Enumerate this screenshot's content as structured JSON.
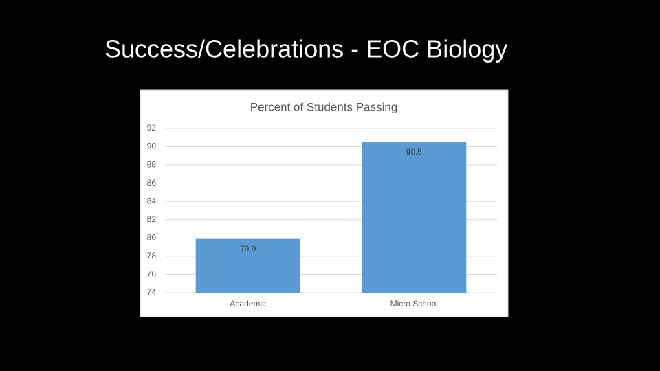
{
  "title": "Success/Celebrations - EOC Biology",
  "chart_data": {
    "type": "bar",
    "title": "Percent of Students Passing",
    "categories": [
      "Academic",
      "Micro School"
    ],
    "values": [
      79.9,
      90.5
    ],
    "color": "#5b9bd5",
    "ylim": [
      74,
      92
    ],
    "yticks": [
      74,
      76,
      78,
      80,
      82,
      84,
      86,
      88,
      90,
      92
    ],
    "grid": true,
    "data_labels": true
  }
}
